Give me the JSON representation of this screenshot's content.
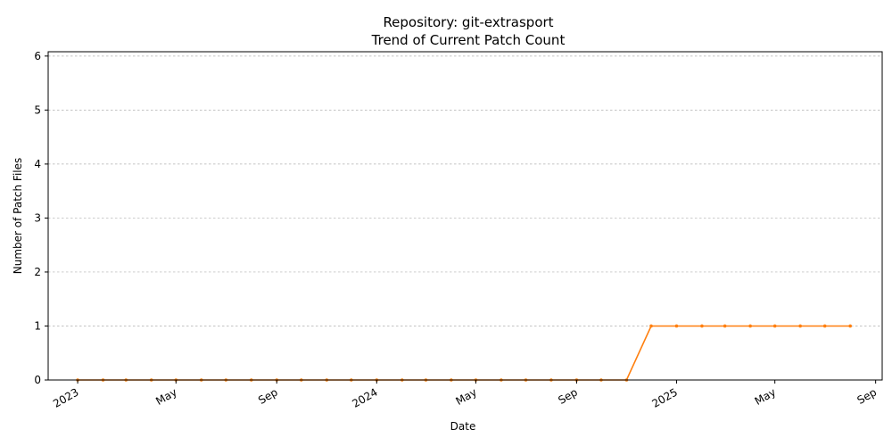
{
  "chart_data": {
    "type": "line",
    "title": "Repository: git-extrasport",
    "subtitle": "Trend of Current Patch Count",
    "xlabel": "Date",
    "ylabel": "Number of Patch Files",
    "ylim": [
      0,
      6.08
    ],
    "xlim": [
      "2022-11-26",
      "2025-09-09"
    ],
    "grid": "y-dashed",
    "colors": {
      "series": "#ff7f0e",
      "grid": "#b0b0b0",
      "axis": "#000000"
    },
    "y_ticks": [
      0,
      1,
      2,
      3,
      4,
      5,
      6
    ],
    "x_ticks": [
      {
        "date": "2023-01-01",
        "label": "2023"
      },
      {
        "date": "2023-05-01",
        "label": "May"
      },
      {
        "date": "2023-09-01",
        "label": "Sep"
      },
      {
        "date": "2024-01-01",
        "label": "2024"
      },
      {
        "date": "2024-05-01",
        "label": "May"
      },
      {
        "date": "2024-09-01",
        "label": "Sep"
      },
      {
        "date": "2025-01-01",
        "label": "2025"
      },
      {
        "date": "2025-05-01",
        "label": "May"
      },
      {
        "date": "2025-09-01",
        "label": "Sep"
      }
    ],
    "series": [
      {
        "x": [
          "2023-01-01",
          "2023-02-01",
          "2023-03-01",
          "2023-04-01",
          "2023-05-01",
          "2023-06-01",
          "2023-07-01",
          "2023-08-01",
          "2023-09-01",
          "2023-10-01",
          "2023-11-01",
          "2023-12-01",
          "2024-01-01",
          "2024-02-01",
          "2024-03-01",
          "2024-04-01",
          "2024-05-01",
          "2024-06-01",
          "2024-07-01",
          "2024-08-01",
          "2024-09-01",
          "2024-10-01",
          "2024-11-01",
          "2024-12-01",
          "2025-01-01",
          "2025-02-01",
          "2025-03-01",
          "2025-04-01",
          "2025-05-01",
          "2025-06-01",
          "2025-07-01",
          "2025-08-01"
        ],
        "values": [
          0,
          0,
          0,
          0,
          0,
          0,
          0,
          0,
          0,
          0,
          0,
          0,
          0,
          0,
          0,
          0,
          0,
          0,
          0,
          0,
          0,
          0,
          0,
          1,
          1,
          1,
          1,
          1,
          1,
          1,
          1,
          1
        ]
      }
    ]
  }
}
